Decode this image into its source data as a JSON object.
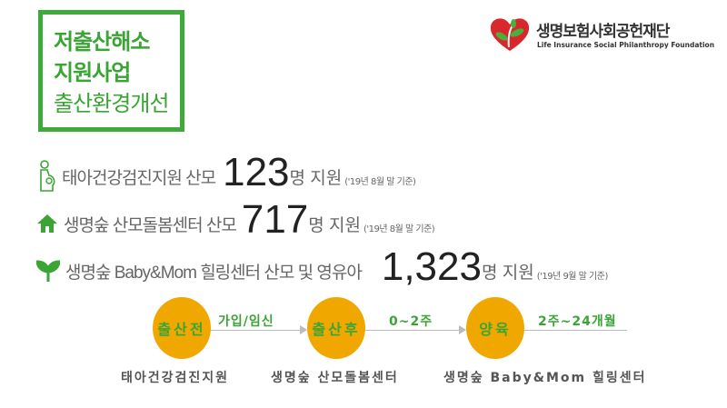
{
  "title": {
    "line1": "저출산해소",
    "line2": "지원사업",
    "line3": "출산환경개선"
  },
  "logo": {
    "name_ko": "생명보험사회공헌재단",
    "name_en": "Life Insurance Social Philanthropy Foundation",
    "icon": "heart-leaf-logo",
    "colors": {
      "heart": "#d8282e",
      "leaf": "#4caf3c"
    }
  },
  "stats": [
    {
      "icon": "pregnant-woman-icon",
      "label": "태아건강검진지원 산모",
      "value": "123",
      "unit": "명 지원",
      "note": "('19년 8월 말 기준)"
    },
    {
      "icon": "house-icon",
      "label": "생명숲 산모돌봄센터 산모",
      "value": "717",
      "unit": "명 지원",
      "note": "('19년 8월 말 기준)"
    },
    {
      "icon": "sprout-icon",
      "label": "생명숲 Baby&Mom 힐링센터 산모 및 영유아",
      "value": "1,323",
      "unit": "명 지원",
      "note": "('19년 9월 말 기준)"
    }
  ],
  "timeline": {
    "stages": [
      {
        "label": "출산전",
        "program": "태아건강검진지원"
      },
      {
        "label": "출산후",
        "program": "생명숲 산모돌봄센터"
      },
      {
        "label": "양육",
        "program": "생명숲 Baby&Mom 힐링센터"
      }
    ],
    "segments": [
      "가입/임신",
      "0~2주",
      "2주~24개월"
    ]
  },
  "colors": {
    "green": "#3aa535",
    "orange": "#f0a800"
  }
}
